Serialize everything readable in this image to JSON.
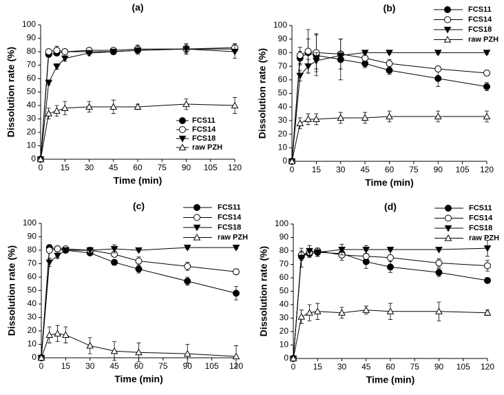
{
  "chart_data": [
    {
      "type": "line",
      "title": "(a)",
      "x_label": "Time (min)",
      "y_label": "Dissolution rate (%)",
      "x": [
        0,
        5,
        10,
        15,
        30,
        45,
        60,
        90,
        120
      ],
      "xlim": [
        0,
        120
      ],
      "xticks": [
        0,
        15,
        30,
        45,
        60,
        75,
        90,
        105,
        120
      ],
      "ylim": [
        0,
        100
      ],
      "yticks": [
        0,
        10,
        20,
        30,
        40,
        50,
        60,
        70,
        80,
        90,
        100
      ],
      "legend": "lower right",
      "series": [
        {
          "name": "FCS11",
          "color": "#000000",
          "marker": "filled-circle",
          "values": [
            0,
            78,
            79,
            80,
            80,
            80,
            81,
            82,
            82
          ],
          "errors": [
            0,
            2,
            2,
            1,
            1,
            1,
            2,
            3,
            2
          ]
        },
        {
          "name": "FCS14",
          "color": "#000000",
          "marker": "open-circle",
          "values": [
            0,
            80,
            81,
            80,
            81,
            81,
            82,
            82,
            83
          ],
          "errors": [
            0,
            2,
            3,
            1,
            1,
            1,
            3,
            3,
            3
          ]
        },
        {
          "name": "FCS18",
          "color": "#000000",
          "marker": "filled-triangle-down",
          "values": [
            0,
            57,
            69,
            75,
            79,
            80,
            81,
            82,
            80
          ],
          "errors": [
            0,
            2,
            2,
            2,
            2,
            2,
            3,
            4,
            5
          ]
        },
        {
          "name": "raw PZH",
          "color": "#000000",
          "marker": "open-triangle-up",
          "values": [
            0,
            34,
            36,
            38,
            39,
            39,
            39,
            41,
            40
          ],
          "errors": [
            0,
            4,
            4,
            5,
            4,
            5,
            2,
            4,
            6
          ]
        }
      ]
    },
    {
      "type": "line",
      "title": "(b)",
      "x_label": "Time (min)",
      "y_label": "Dissolution rate (%)",
      "x": [
        0,
        5,
        10,
        15,
        30,
        45,
        60,
        90,
        120
      ],
      "xlim": [
        0,
        120
      ],
      "xticks": [
        0,
        15,
        30,
        45,
        60,
        75,
        90,
        105,
        120
      ],
      "ylim": [
        0,
        100
      ],
      "yticks": [
        0,
        10,
        20,
        30,
        40,
        50,
        60,
        70,
        80,
        90,
        100
      ],
      "legend": "upper right",
      "series": [
        {
          "name": "FCS11",
          "color": "#000000",
          "marker": "filled-circle",
          "values": [
            0,
            76,
            80,
            78,
            75,
            72,
            67,
            61,
            55
          ],
          "errors": [
            0,
            5,
            10,
            15,
            15,
            3,
            3,
            6,
            3
          ]
        },
        {
          "name": "FCS14",
          "color": "#000000",
          "marker": "open-circle",
          "values": [
            0,
            78,
            81,
            80,
            79,
            76,
            72,
            68,
            65
          ],
          "errors": [
            0,
            6,
            16,
            14,
            11,
            3,
            3,
            2,
            2
          ]
        },
        {
          "name": "FCS18",
          "color": "#000000",
          "marker": "filled-triangle-down",
          "values": [
            0,
            63,
            70,
            74,
            78,
            80,
            80,
            80,
            80
          ],
          "errors": [
            0,
            4,
            5,
            6,
            3,
            1,
            1,
            1,
            1
          ]
        },
        {
          "name": "raw PZH",
          "color": "#000000",
          "marker": "open-triangle-up",
          "values": [
            0,
            28,
            31,
            31,
            32,
            32,
            33,
            33,
            33
          ],
          "errors": [
            0,
            4,
            4,
            4,
            4,
            4,
            4,
            4,
            4
          ]
        }
      ]
    },
    {
      "type": "line",
      "title": "(c)",
      "x_label": "Time (min)",
      "y_label": "Dissolution rate (%)",
      "x": [
        0,
        5,
        10,
        15,
        30,
        45,
        60,
        90,
        120
      ],
      "xlim": [
        0,
        120
      ],
      "xticks": [
        0,
        15,
        30,
        45,
        60,
        75,
        90,
        105,
        120
      ],
      "ylim": [
        0,
        100
      ],
      "yticks": [
        0,
        10,
        20,
        30,
        40,
        50,
        60,
        70,
        80,
        90,
        100
      ],
      "legend": "upper right",
      "series": [
        {
          "name": "FCS11",
          "color": "#000000",
          "marker": "filled-circle",
          "values": [
            0,
            82,
            81,
            80,
            78,
            71,
            66,
            57,
            48
          ],
          "errors": [
            0,
            2,
            2,
            1,
            1,
            2,
            3,
            3,
            5
          ]
        },
        {
          "name": "FCS14",
          "color": "#000000",
          "marker": "open-circle",
          "values": [
            0,
            80,
            81,
            81,
            80,
            77,
            72,
            68,
            64
          ],
          "errors": [
            0,
            2,
            1,
            1,
            1,
            2,
            3,
            3,
            2
          ]
        },
        {
          "name": "FCS18",
          "color": "#000000",
          "marker": "filled-triangle-down",
          "values": [
            0,
            71,
            76,
            80,
            80,
            81,
            80,
            82,
            82
          ],
          "errors": [
            0,
            3,
            2,
            2,
            2,
            3,
            1,
            1,
            1
          ]
        },
        {
          "name": "raw PZH",
          "color": "#000000",
          "marker": "open-triangle-up",
          "values": [
            0,
            17,
            18,
            17,
            9,
            5,
            4,
            3,
            1
          ],
          "errors": [
            0,
            6,
            6,
            6,
            6,
            7,
            7,
            7,
            8
          ]
        }
      ]
    },
    {
      "type": "line",
      "title": "(d)",
      "x_label": "Time (min)",
      "y_label": "Dissolution rate (%)",
      "x": [
        0,
        5,
        10,
        15,
        30,
        45,
        60,
        90,
        120
      ],
      "xlim": [
        0,
        120
      ],
      "xticks": [
        0,
        15,
        30,
        45,
        60,
        75,
        90,
        105,
        120
      ],
      "ylim": [
        0,
        100
      ],
      "yticks": [
        0,
        10,
        20,
        30,
        40,
        50,
        60,
        70,
        80,
        90,
        100
      ],
      "legend": "upper right",
      "series": [
        {
          "name": "FCS11",
          "color": "#000000",
          "marker": "filled-circle",
          "values": [
            0,
            76,
            78,
            79,
            78,
            72,
            68,
            64,
            58
          ],
          "errors": [
            0,
            3,
            3,
            3,
            3,
            5,
            4,
            3,
            2
          ]
        },
        {
          "name": "FCS14",
          "color": "#000000",
          "marker": "open-circle",
          "values": [
            0,
            77,
            79,
            80,
            77,
            76,
            75,
            71,
            69
          ],
          "errors": [
            0,
            3,
            3,
            2,
            4,
            4,
            5,
            3,
            4
          ]
        },
        {
          "name": "FCS18",
          "color": "#000000",
          "marker": "filled-triangle-down",
          "values": [
            0,
            75,
            80,
            79,
            81,
            81,
            81,
            81,
            82
          ],
          "errors": [
            0,
            7,
            4,
            3,
            4,
            3,
            1,
            1,
            6
          ]
        },
        {
          "name": "raw PZH",
          "color": "#000000",
          "marker": "open-triangle-up",
          "values": [
            0,
            31,
            34,
            35,
            34,
            36,
            35,
            35,
            34
          ],
          "errors": [
            0,
            5,
            6,
            6,
            4,
            3,
            6,
            7,
            2
          ]
        }
      ]
    }
  ]
}
